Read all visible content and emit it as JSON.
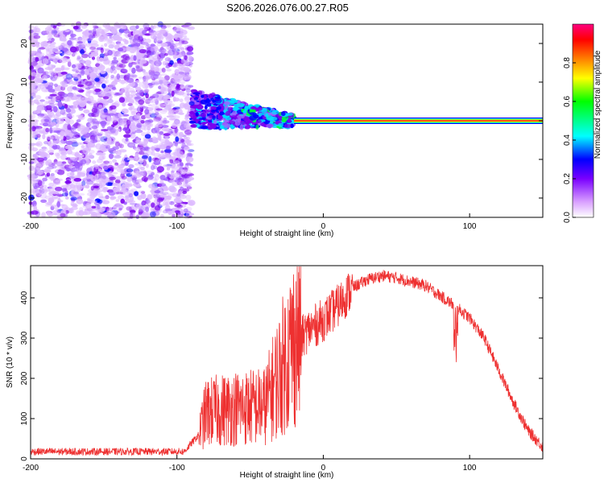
{
  "title": "S206.2026.076.00.27.R05",
  "chart_data": [
    {
      "type": "heatmap",
      "xlabel": "Height of straight line (km)",
      "ylabel": "Frequency (Hz)",
      "xlim": [
        -200,
        150
      ],
      "ylim": [
        -25,
        25
      ],
      "xticks": [
        -200,
        -100,
        0,
        100
      ],
      "yticks": [
        -20,
        -10,
        0,
        10,
        20
      ],
      "colorbar": {
        "label": "Normalized spectral amplitude",
        "range": [
          0,
          1
        ],
        "ticks": [
          0.0,
          0.2,
          0.4,
          0.6,
          0.8
        ],
        "tick_labels": [
          "0.0",
          "0.2",
          "0.4",
          "0.6",
          "0.8"
        ]
      },
      "regions": [
        {
          "name": "noise",
          "x": [
            -200,
            -90
          ],
          "freq_spread": [
            -25,
            25
          ],
          "amplitude": [
            0.0,
            0.15
          ]
        },
        {
          "name": "signal-onset",
          "x": [
            -90,
            -20
          ],
          "freq_center": [
            3,
            0
          ],
          "freq_spread": 5,
          "amplitude": [
            0.15,
            0.4
          ]
        },
        {
          "name": "carrier",
          "x": [
            -20,
            150
          ],
          "freq_center": 0,
          "amplitude": 0.9
        }
      ],
      "carrier_frequency": 0
    },
    {
      "type": "line",
      "xlabel": "Height of straight line (km)",
      "ylabel": "SNR (10 * v/v)",
      "xlim": [
        -200,
        150
      ],
      "ylim": [
        0,
        480
      ],
      "xticks": [
        -200,
        -100,
        0,
        100
      ],
      "yticks": [
        0,
        100,
        200,
        300,
        400
      ],
      "color": "#ee3030",
      "series": [
        {
          "name": "SNR",
          "envelope_x": [
            -200,
            -95,
            -85,
            -80,
            -60,
            -40,
            -20,
            -10,
            0,
            10,
            20,
            30,
            40,
            50,
            60,
            70,
            80,
            90,
            100,
            110,
            120,
            130,
            140,
            150
          ],
          "envelope_y": [
            18,
            18,
            60,
            110,
            120,
            125,
            280,
            320,
            345,
            380,
            425,
            445,
            455,
            450,
            440,
            430,
            405,
            380,
            350,
            300,
            220,
            140,
            70,
            30
          ]
        }
      ]
    }
  ]
}
